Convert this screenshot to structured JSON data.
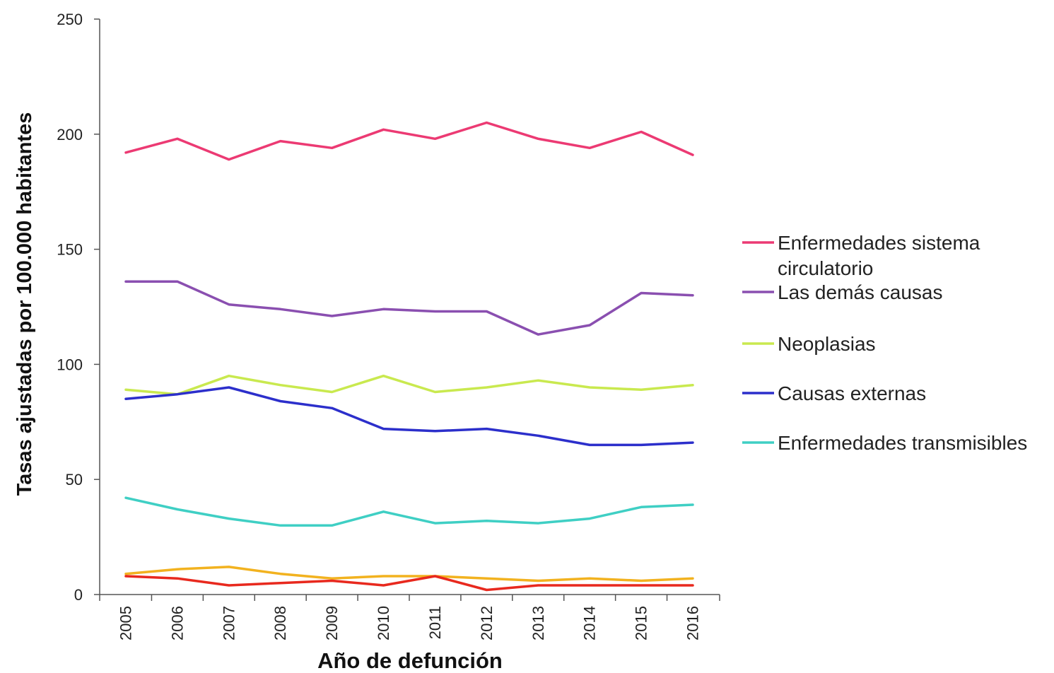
{
  "chart_data": {
    "type": "line",
    "title": "",
    "xlabel": "Año de defunción",
    "ylabel": "Tasas ajustadas por 100.000 habitantes",
    "categories": [
      "2005",
      "2006",
      "2007",
      "2008",
      "2009",
      "2010",
      "2011",
      "2012",
      "2013",
      "2014",
      "2015",
      "2016"
    ],
    "ylim": [
      0,
      250
    ],
    "yticks": [
      0,
      50,
      100,
      150,
      200,
      250
    ],
    "grid": false,
    "legend_position": "right",
    "series": [
      {
        "name": "Enfermedades sistema circulatorio",
        "color": "#ec3a73",
        "values": [
          192,
          198,
          189,
          197,
          194,
          202,
          198,
          205,
          198,
          194,
          201,
          191
        ]
      },
      {
        "name": "Las demás causas",
        "color": "#8a4fb0",
        "values": [
          136,
          136,
          126,
          124,
          121,
          124,
          123,
          123,
          113,
          117,
          131,
          130
        ]
      },
      {
        "name": "Neoplasias",
        "color": "#c9e94f",
        "values": [
          89,
          87,
          95,
          91,
          88,
          95,
          88,
          90,
          93,
          90,
          89,
          91
        ]
      },
      {
        "name": "Causas externas",
        "color": "#2c2fcb",
        "values": [
          85,
          87,
          90,
          84,
          81,
          72,
          71,
          72,
          69,
          65,
          65,
          66
        ]
      },
      {
        "name": "Enfermedades transmisibles",
        "color": "#3fcfc4",
        "values": [
          42,
          37,
          33,
          30,
          30,
          36,
          31,
          32,
          31,
          33,
          38,
          39
        ]
      },
      {
        "color": "#f2b21f",
        "values": [
          9,
          11,
          12,
          9,
          7,
          8,
          8,
          7,
          6,
          7,
          6,
          7
        ]
      },
      {
        "color": "#e8291e",
        "values": [
          8,
          7,
          4,
          5,
          6,
          4,
          8,
          2,
          4,
          4,
          4,
          4
        ]
      }
    ]
  }
}
